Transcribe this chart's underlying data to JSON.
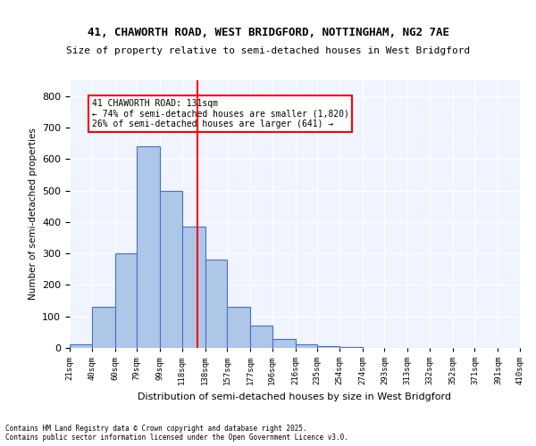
{
  "title_line1": "41, CHAWORTH ROAD, WEST BRIDGFORD, NOTTINGHAM, NG2 7AE",
  "title_line2": "Size of property relative to semi-detached houses in West Bridgford",
  "xlabel": "Distribution of semi-detached houses by size in West Bridgford",
  "ylabel": "Number of semi-detached properties",
  "bin_labels": [
    "21sqm",
    "40sqm",
    "60sqm",
    "79sqm",
    "99sqm",
    "118sqm",
    "138sqm",
    "157sqm",
    "177sqm",
    "196sqm",
    "216sqm",
    "235sqm",
    "254sqm",
    "274sqm",
    "293sqm",
    "313sqm",
    "332sqm",
    "352sqm",
    "371sqm",
    "391sqm",
    "410sqm"
  ],
  "bar_heights": [
    10,
    130,
    300,
    640,
    500,
    385,
    280,
    130,
    70,
    28,
    12,
    5,
    2,
    1,
    0,
    0,
    0,
    0,
    0,
    0,
    0
  ],
  "bar_color": "#aec6e8",
  "bar_edge_color": "#4472c4",
  "vline_x": 131,
  "vline_bin_index": 5.5,
  "property_sqm": 131,
  "pct_smaller": 74,
  "n_smaller": 1820,
  "pct_larger": 26,
  "n_larger": 641,
  "annotation_text_line1": "41 CHAWORTH ROAD: 131sqm",
  "annotation_text_line2": "← 74% of semi-detached houses are smaller (1,820)",
  "annotation_text_line3": "26% of semi-detached houses are larger (641) →",
  "ylim": [
    0,
    850
  ],
  "yticks": [
    0,
    100,
    200,
    300,
    400,
    500,
    600,
    700,
    800
  ],
  "background_color": "#f0f4ff",
  "grid_color": "#ffffff",
  "footer_line1": "Contains HM Land Registry data © Crown copyright and database right 2025.",
  "footer_line2": "Contains public sector information licensed under the Open Government Licence v3.0.",
  "bin_width": 19
}
